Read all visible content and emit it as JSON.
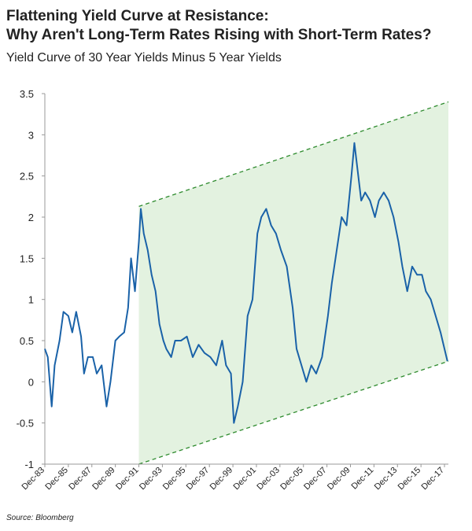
{
  "chart_data": {
    "type": "line",
    "title": [
      "Flattening Yield Curve at Resistance:",
      "Why Aren't Long-Term Rates Rising with Short-Term Rates?"
    ],
    "subtitle": "Yield Curve of 30 Year Yields Minus 5 Year Yields",
    "source": "Source: Bloomberg",
    "x": [
      "1983-12",
      "1984-03",
      "1984-07",
      "1984-10",
      "1985-03",
      "1985-07",
      "1985-12",
      "1986-04",
      "1986-08",
      "1987-01",
      "1987-04",
      "1987-08",
      "1988-01",
      "1988-05",
      "1988-10",
      "1989-03",
      "1989-07",
      "1989-12",
      "1990-04",
      "1990-09",
      "1991-01",
      "1991-04",
      "1991-08",
      "1991-12",
      "1992-02",
      "1992-05",
      "1992-09",
      "1993-01",
      "1993-05",
      "1993-09",
      "1994-01",
      "1994-04",
      "1994-09",
      "1995-01",
      "1995-07",
      "1996-01",
      "1996-07",
      "1997-01",
      "1997-07",
      "1998-01",
      "1998-07",
      "1999-01",
      "1999-05",
      "1999-10",
      "2000-01",
      "2000-05",
      "2000-10",
      "2001-03",
      "2001-08",
      "2002-01",
      "2002-05",
      "2002-10",
      "2003-03",
      "2003-08",
      "2004-01",
      "2004-07",
      "2005-01",
      "2005-05",
      "2005-10",
      "2006-03",
      "2006-08",
      "2007-01",
      "2007-07",
      "2008-01",
      "2008-05",
      "2008-10",
      "2009-03",
      "2009-08",
      "2010-01",
      "2010-04",
      "2010-08",
      "2010-11",
      "2011-03",
      "2011-08",
      "2012-01",
      "2012-05",
      "2012-10",
      "2013-03",
      "2013-08",
      "2014-01",
      "2014-05",
      "2014-10",
      "2015-03",
      "2015-08",
      "2016-01",
      "2016-05",
      "2016-10",
      "2017-03",
      "2017-08",
      "2017-11",
      "2018-03"
    ],
    "series": [
      {
        "color": "#1a62a8",
        "values": [
          0.4,
          0.3,
          -0.3,
          0.2,
          0.5,
          0.85,
          0.8,
          0.6,
          0.85,
          0.55,
          0.1,
          0.3,
          0.3,
          0.1,
          0.2,
          -0.3,
          0.0,
          0.5,
          0.55,
          0.6,
          0.9,
          1.5,
          1.1,
          1.7,
          2.1,
          1.8,
          1.6,
          1.3,
          1.1,
          0.7,
          0.5,
          0.4,
          0.3,
          0.5,
          0.5,
          0.55,
          0.3,
          0.45,
          0.35,
          0.3,
          0.2,
          0.5,
          0.2,
          0.1,
          -0.5,
          -0.3,
          0.0,
          0.8,
          1.0,
          1.8,
          2.0,
          2.1,
          1.9,
          1.8,
          1.6,
          1.4,
          0.9,
          0.4,
          0.2,
          0.0,
          0.2,
          0.1,
          0.3,
          0.8,
          1.2,
          1.6,
          2.0,
          1.9,
          2.5,
          2.9,
          2.5,
          2.2,
          2.3,
          2.2,
          2.0,
          2.2,
          2.3,
          2.2,
          2.0,
          1.7,
          1.4,
          1.1,
          1.4,
          1.3,
          1.3,
          1.1,
          1.0,
          0.8,
          0.6,
          0.45,
          0.25
        ]
      }
    ],
    "channel": {
      "color": "#2e8b2e",
      "fill": "#e3f2e0",
      "x": [
        "1991-12",
        "2018-04"
      ],
      "upper": [
        2.13,
        3.4
      ],
      "lower": [
        -1,
        0.25
      ]
    },
    "xlim": [
      "1983-12",
      "2018-04"
    ],
    "xticks": [
      {
        "value": "1983-12",
        "label": "Dec-83"
      },
      {
        "value": "1985-12",
        "label": "Dec-85"
      },
      {
        "value": "1987-12",
        "label": "Dec-87"
      },
      {
        "value": "1989-12",
        "label": "Dec-89"
      },
      {
        "value": "1991-12",
        "label": "Dec-91"
      },
      {
        "value": "1993-12",
        "label": "Dec-93"
      },
      {
        "value": "1995-12",
        "label": "Dec-95"
      },
      {
        "value": "1997-12",
        "label": "Dec-97"
      },
      {
        "value": "1999-12",
        "label": "Dec-99"
      },
      {
        "value": "2001-12",
        "label": "Dec-01"
      },
      {
        "value": "2003-12",
        "label": "Dec-03"
      },
      {
        "value": "2005-12",
        "label": "Dec-05"
      },
      {
        "value": "2007-12",
        "label": "Dec-07"
      },
      {
        "value": "2009-12",
        "label": "Dec-09"
      },
      {
        "value": "2011-12",
        "label": "Dec-11"
      },
      {
        "value": "2013-12",
        "label": "Dec-13"
      },
      {
        "value": "2015-12",
        "label": "Dec-15"
      },
      {
        "value": "2017-12",
        "label": "Dec-17"
      }
    ],
    "ylim": [
      -1,
      3.5
    ],
    "yticks": [
      3.5,
      3,
      2.5,
      2,
      1.5,
      1,
      0.5,
      0,
      -0.5,
      -1
    ],
    "grid": false
  }
}
